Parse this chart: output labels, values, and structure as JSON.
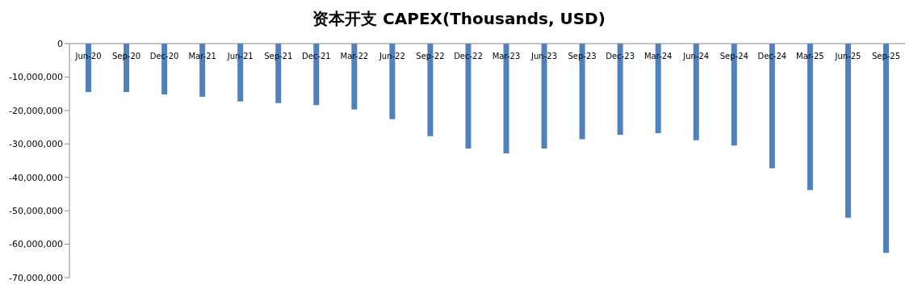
{
  "chart_data": {
    "type": "bar",
    "title": "资本开支 CAPEX(Thousands, USD)",
    "categories": [
      "Jun-20",
      "Sep-20",
      "Dec-20",
      "Mar-21",
      "Jun-21",
      "Sep-21",
      "Dec-21",
      "Mar-22",
      "Jun-22",
      "Sep-22",
      "Dec-22",
      "Mar-23",
      "Jun-23",
      "Sep-23",
      "Dec-23",
      "Mar-24",
      "Jun-24",
      "Sep-24",
      "Dec-24",
      "Mar-25",
      "Jun-25",
      "Sep-25"
    ],
    "values": [
      -14500000,
      -14500000,
      -15200000,
      -15900000,
      -17300000,
      -17800000,
      -18400000,
      -19700000,
      -22600000,
      -27700000,
      -31400000,
      -32800000,
      -31400000,
      -28600000,
      -27300000,
      -26800000,
      -28900000,
      -30500000,
      -37300000,
      -43800000,
      -52100000,
      -62600000
    ],
    "color": "#4f81bd",
    "ylim": [
      -70000000,
      0
    ],
    "yticks": [
      0,
      {
        "value": -10000000,
        "label": "-10,000,000"
      },
      {
        "value": -20000000,
        "label": "-20,000,000"
      },
      {
        "value": -30000000,
        "label": "-30,000,000"
      },
      {
        "value": -40000000,
        "label": "-40,000,000"
      },
      {
        "value": -50000000,
        "label": "-50,000,000"
      },
      {
        "value": -60000000,
        "label": "-60,000,000"
      },
      {
        "value": -70000000,
        "label": "-70,000,000"
      }
    ],
    "grid": false,
    "legend": false
  }
}
